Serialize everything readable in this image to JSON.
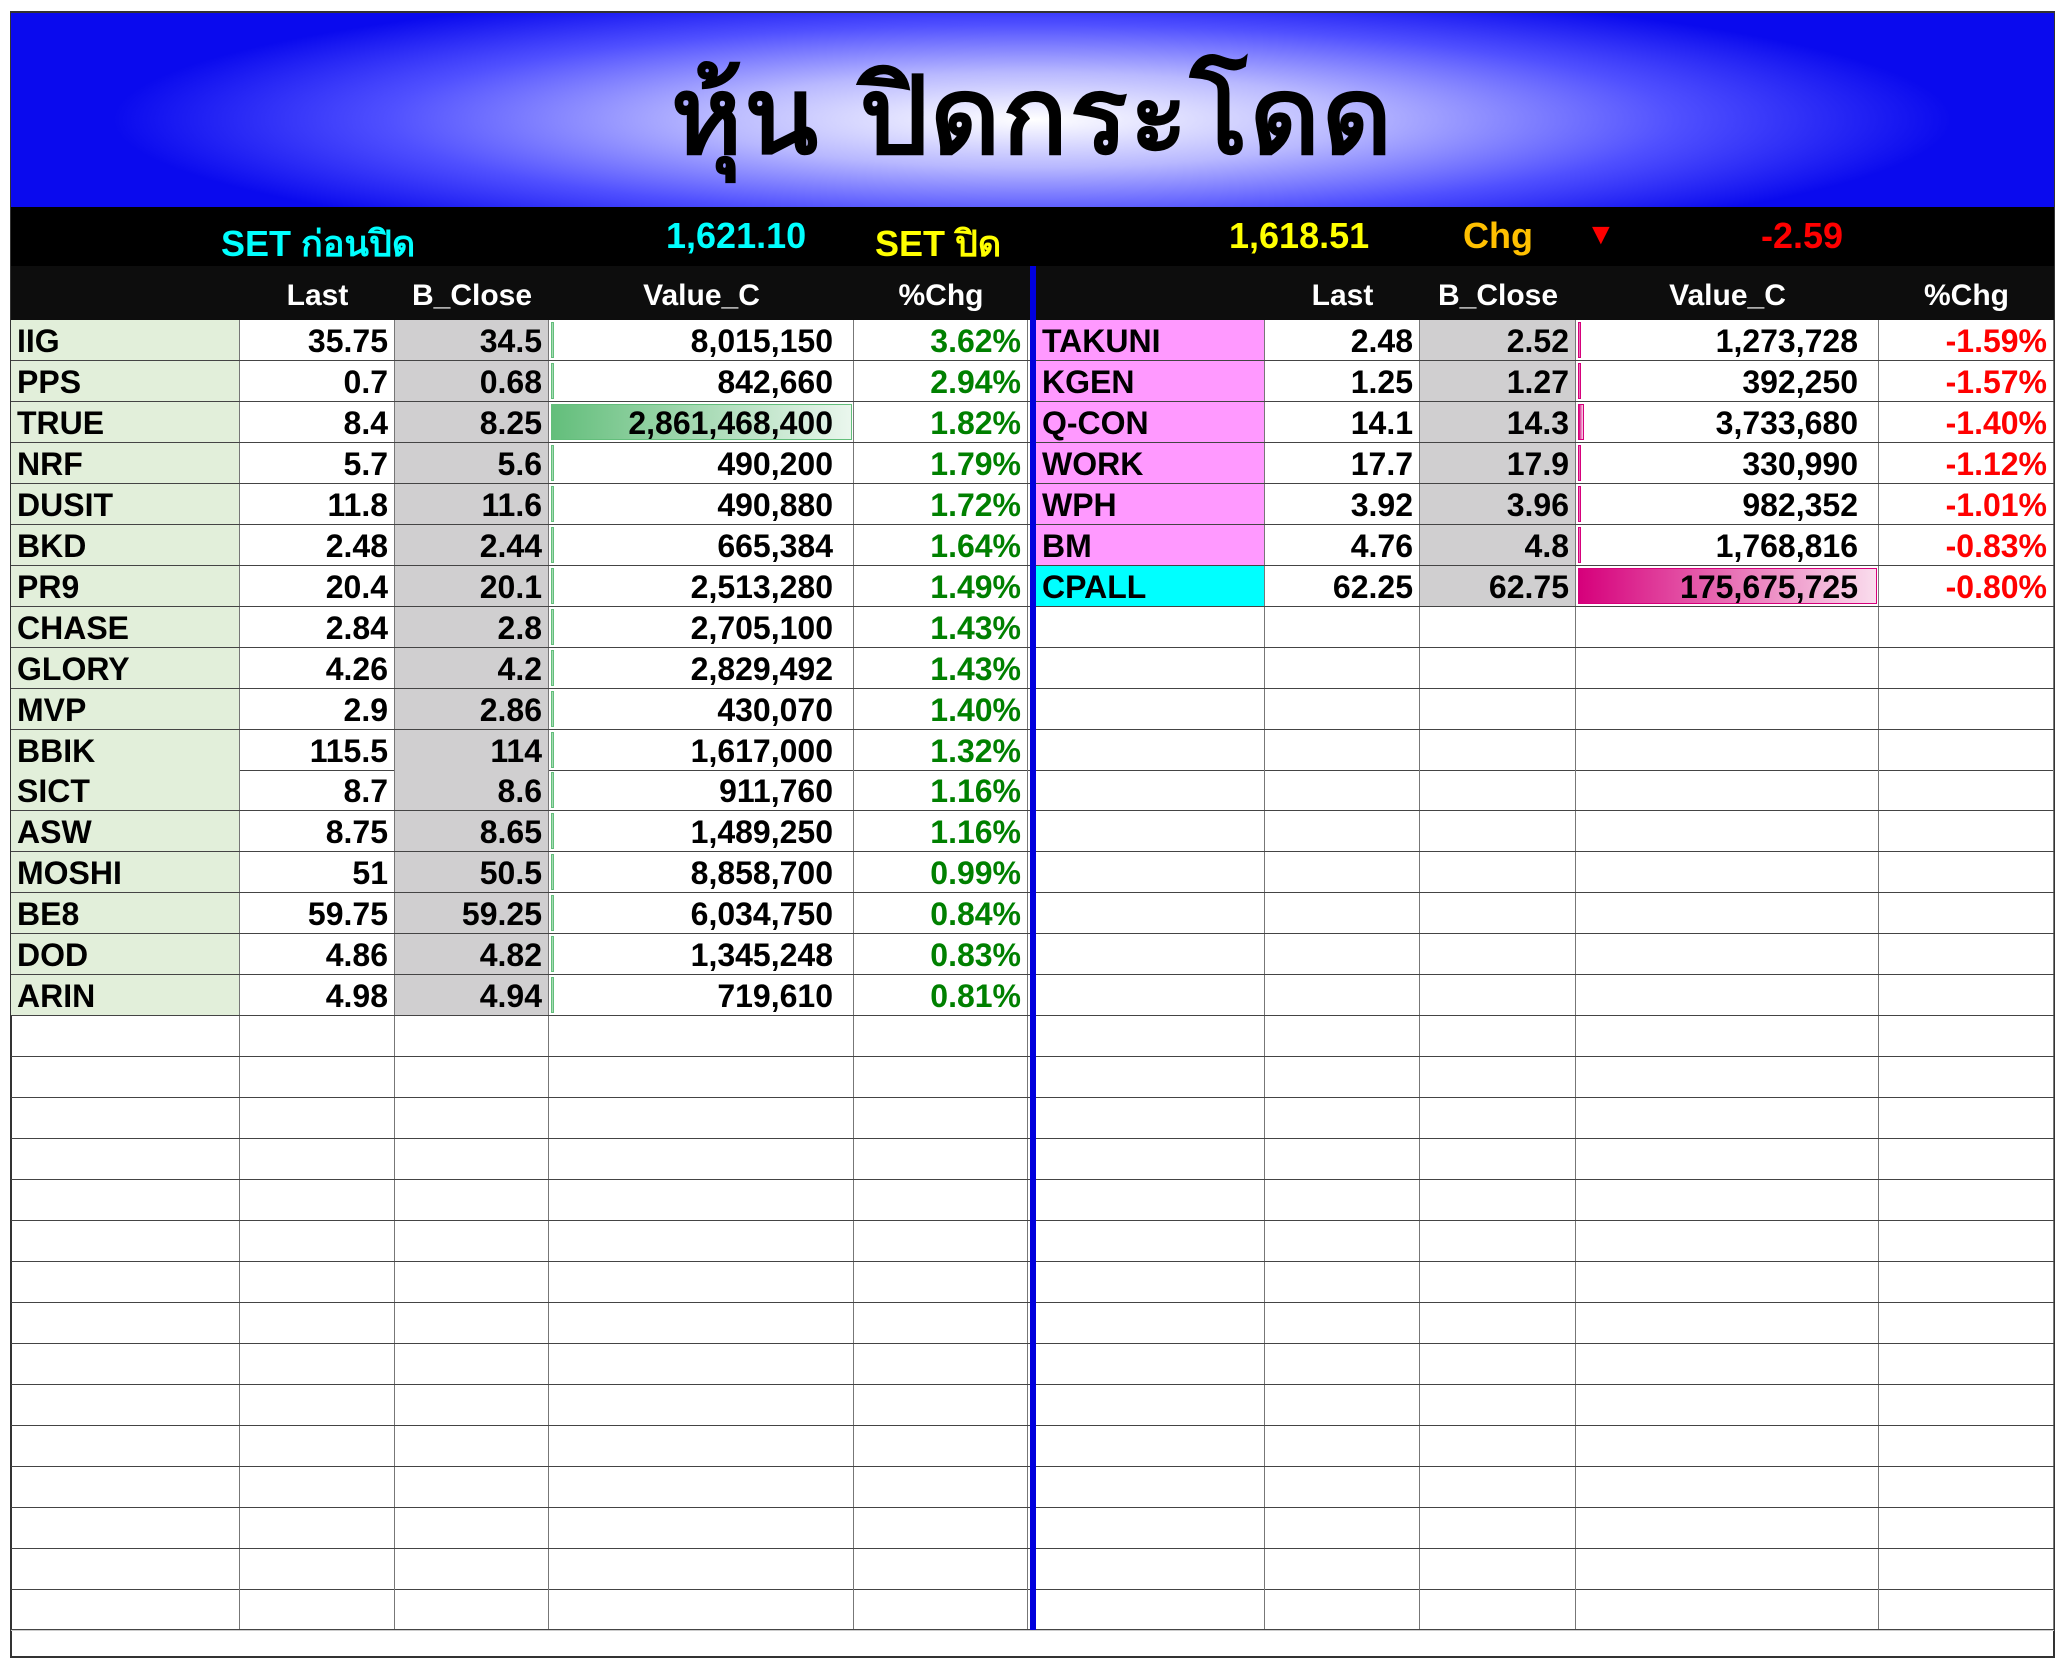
{
  "title": "หุ้น ปิดกระโดด",
  "set_bar": {
    "pre_label": "SET ก่อนปิด",
    "pre_value": "1,621.10",
    "close_label": "SET  ปิด",
    "close_value": "1,618.51",
    "chg_label": "Chg",
    "chg_icon": "triangle-down-icon",
    "chg_arrow": "▼",
    "chg_value": "-2.59"
  },
  "colors": {
    "title_blue": "#0a0aee",
    "gain": "#008000",
    "loss": "#ff0000",
    "gain_symbol_bg": "#e2efda",
    "loss_symbol_bg": "#ff99ff",
    "highlight_symbol_bg": "#00ffff",
    "b_close_bg": "#d0cfd0",
    "gain_bar": "#63be7b",
    "loss_bar": "#d6007b"
  },
  "columns": [
    "",
    "Last",
    "B_Close",
    "Value_C",
    "%Chg"
  ],
  "gainers": [
    {
      "symbol": "IIG",
      "last": "35.75",
      "b_close": "34.5",
      "value": "8,015,150",
      "chg": "3.62%"
    },
    {
      "symbol": "PPS",
      "last": "0.7",
      "b_close": "0.68",
      "value": "842,660",
      "chg": "2.94%"
    },
    {
      "symbol": "TRUE",
      "last": "8.4",
      "b_close": "8.25",
      "value": "2,861,468,400",
      "chg": "1.82%"
    },
    {
      "symbol": "NRF",
      "last": "5.7",
      "b_close": "5.6",
      "value": "490,200",
      "chg": "1.79%"
    },
    {
      "symbol": "DUSIT",
      "last": "11.8",
      "b_close": "11.6",
      "value": "490,880",
      "chg": "1.72%"
    },
    {
      "symbol": "BKD",
      "last": "2.48",
      "b_close": "2.44",
      "value": "665,384",
      "chg": "1.64%"
    },
    {
      "symbol": "PR9",
      "last": "20.4",
      "b_close": "20.1",
      "value": "2,513,280",
      "chg": "1.49%"
    },
    {
      "symbol": "CHASE",
      "last": "2.84",
      "b_close": "2.8",
      "value": "2,705,100",
      "chg": "1.43%"
    },
    {
      "symbol": "GLORY",
      "last": "4.26",
      "b_close": "4.2",
      "value": "2,829,492",
      "chg": "1.43%"
    },
    {
      "symbol": "MVP",
      "last": "2.9",
      "b_close": "2.86",
      "value": "430,070",
      "chg": "1.40%"
    },
    {
      "symbol": "BBIK",
      "last": "115.5",
      "b_close": "114",
      "value": "1,617,000",
      "chg": "1.32%"
    },
    {
      "symbol": "SICT",
      "last": "8.7",
      "b_close": "8.6",
      "value": "911,760",
      "chg": "1.16%"
    },
    {
      "symbol": "ASW",
      "last": "8.75",
      "b_close": "8.65",
      "value": "1,489,250",
      "chg": "1.16%"
    },
    {
      "symbol": "MOSHI",
      "last": "51",
      "b_close": "50.5",
      "value": "8,858,700",
      "chg": "0.99%"
    },
    {
      "symbol": "BE8",
      "last": "59.75",
      "b_close": "59.25",
      "value": "6,034,750",
      "chg": "0.84%"
    },
    {
      "symbol": "DOD",
      "last": "4.86",
      "b_close": "4.82",
      "value": "1,345,248",
      "chg": "0.83%"
    },
    {
      "symbol": "ARIN",
      "last": "4.98",
      "b_close": "4.94",
      "value": "719,610",
      "chg": "0.81%"
    }
  ],
  "losers": [
    {
      "symbol": "TAKUNI",
      "last": "2.48",
      "b_close": "2.52",
      "value": "1,273,728",
      "chg": "-1.59%"
    },
    {
      "symbol": "KGEN",
      "last": "1.25",
      "b_close": "1.27",
      "value": "392,250",
      "chg": "-1.57%"
    },
    {
      "symbol": "Q-CON",
      "last": "14.1",
      "b_close": "14.3",
      "value": "3,733,680",
      "chg": "-1.40%"
    },
    {
      "symbol": "WORK",
      "last": "17.7",
      "b_close": "17.9",
      "value": "330,990",
      "chg": "-1.12%"
    },
    {
      "symbol": "WPH",
      "last": "3.92",
      "b_close": "3.96",
      "value": "982,352",
      "chg": "-1.01%"
    },
    {
      "symbol": "BM",
      "last": "4.76",
      "b_close": "4.8",
      "value": "1,768,816",
      "chg": "-0.83%"
    },
    {
      "symbol": "CPALL",
      "last": "62.25",
      "b_close": "62.75",
      "value": "175,675,725",
      "chg": "-0.80%",
      "highlight": true
    }
  ]
}
